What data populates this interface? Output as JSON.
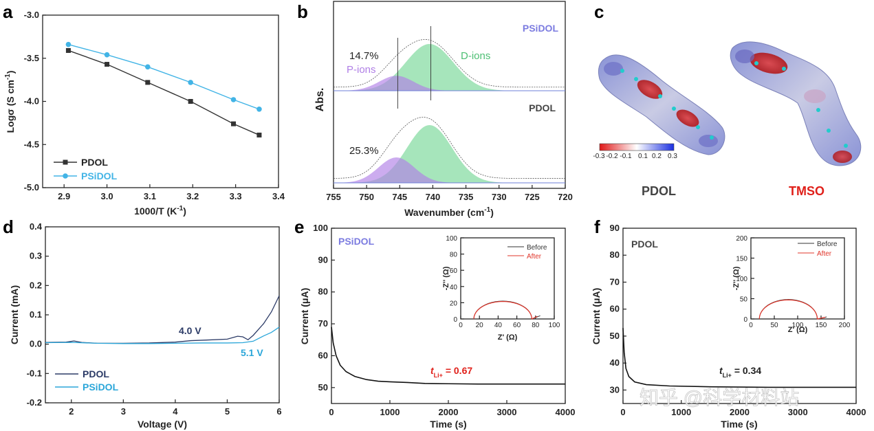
{
  "panels": {
    "a": {
      "letter": "a",
      "chart_data": {
        "type": "line",
        "xlabel": "1000/T (K",
        "xlabel_sup": "-1",
        "xlabel_end": ")",
        "ylabel": "Logσ (S cm",
        "ylabel_sup": "-1",
        "ylabel_end": ")",
        "xlim": [
          2.85,
          3.4
        ],
        "ylim": [
          -5.0,
          -3.0
        ],
        "xticks": [
          2.9,
          3.0,
          3.1,
          3.2,
          3.3,
          3.4
        ],
        "xtick_labels": [
          "2.9",
          "3.0",
          "3.1",
          "3.2",
          "3.3",
          "3.4"
        ],
        "yticks": [
          -3.0,
          -3.5,
          -4.0,
          -4.5,
          -5.0
        ],
        "ytick_labels": [
          "-3.0",
          "-3.5",
          "-4.0",
          "-4.5",
          "-5.0"
        ],
        "series": [
          {
            "name": "PDOL",
            "color": "#333333",
            "marker": "square",
            "x": [
              2.91,
              3.0,
              3.095,
              3.195,
              3.295,
              3.355
            ],
            "y": [
              -3.41,
              -3.57,
              -3.78,
              -4.0,
              -4.26,
              -4.39
            ]
          },
          {
            "name": "PSiDOL",
            "color": "#42b4e6",
            "marker": "circle",
            "x": [
              2.91,
              3.0,
              3.095,
              3.195,
              3.295,
              3.355
            ],
            "y": [
              -3.34,
              -3.46,
              -3.6,
              -3.78,
              -3.98,
              -4.09
            ]
          }
        ]
      }
    },
    "b": {
      "letter": "b",
      "chart_data": {
        "type": "area",
        "xlabel": "Wavenumber (cm",
        "xlabel_sup": "-1",
        "xlabel_end": ")",
        "ylabel": "Abs.",
        "xlim": [
          755,
          720
        ],
        "xticks": [
          755,
          750,
          745,
          740,
          735,
          730,
          725,
          720
        ],
        "xtick_labels": [
          "755",
          "750",
          "745",
          "740",
          "735",
          "730",
          "725",
          "720"
        ],
        "spectra": [
          {
            "name": "PSiDOL",
            "name_color": "#7b7be0",
            "p_ions_pct": "14.7%",
            "p_center": 745.5,
            "p_width": 2.6,
            "p_amp": 0.32,
            "d_center": 740.5,
            "d_width": 3.6,
            "d_amp": 1.0
          },
          {
            "name": "PDOL",
            "name_color": "#444444",
            "p_ions_pct": "25.3%",
            "p_center": 745.5,
            "p_width": 2.7,
            "p_amp": 0.44,
            "d_center": 740.5,
            "d_width": 3.4,
            "d_amp": 1.0
          }
        ],
        "annotations": {
          "p_ions": "P-ions",
          "d_ions": "D-ions"
        },
        "p_color": "#b07fe6",
        "d_color": "#5ccf83"
      }
    },
    "c": {
      "letter": "c",
      "molecule_labels": [
        "PDOL",
        "TMSO"
      ],
      "molecule_label_colors": [
        "#444444",
        "#e0201a"
      ],
      "colorbar_ticks": [
        "-0.3",
        "-0.2",
        "-0.1",
        "0.1",
        "0.2",
        "0.3"
      ]
    },
    "d": {
      "letter": "d",
      "chart_data": {
        "type": "line",
        "xlabel": "Voltage (V)",
        "ylabel": "Current (mA)",
        "xlim": [
          1.5,
          6
        ],
        "ylim": [
          -0.2,
          0.4
        ],
        "xticks": [
          2,
          3,
          4,
          5,
          6
        ],
        "xtick_labels": [
          "2",
          "3",
          "4",
          "5",
          "6"
        ],
        "yticks": [
          0.4,
          0.3,
          0.2,
          0.1,
          0.0,
          -0.1,
          -0.2
        ],
        "ytick_labels": [
          "0.4",
          "0.3",
          "0.2",
          "0.1",
          "0.0",
          "-0.1",
          "-0.2"
        ],
        "series": [
          {
            "name": "PDOL",
            "color": "#2b3a66",
            "x": [
              1.5,
              1.9,
              2.05,
              2.2,
              2.5,
              3.0,
              3.5,
              4.0,
              4.3,
              4.6,
              5.0,
              5.2,
              5.3,
              5.4,
              5.5,
              5.7,
              5.85,
              6.0
            ],
            "y": [
              0.006,
              0.007,
              0.011,
              0.006,
              0.003,
              0.003,
              0.004,
              0.007,
              0.012,
              0.014,
              0.017,
              0.027,
              0.025,
              0.015,
              0.03,
              0.07,
              0.11,
              0.165
            ]
          },
          {
            "name": "PSiDOL",
            "color": "#2aa6d9",
            "x": [
              1.5,
              2.0,
              2.5,
              3.0,
              3.5,
              4.0,
              4.5,
              5.0,
              5.3,
              5.5,
              5.7,
              5.85,
              6.0
            ],
            "y": [
              0.005,
              0.006,
              0.003,
              0.002,
              0.002,
              0.003,
              0.004,
              0.004,
              0.005,
              0.01,
              0.028,
              0.04,
              0.058
            ]
          }
        ],
        "annotations": [
          {
            "text": "4.0 V",
            "color": "#2b3a66"
          },
          {
            "text": "5.1 V",
            "color": "#2aa6d9"
          }
        ]
      }
    },
    "e": {
      "letter": "e",
      "label": "PSiDOL",
      "label_color": "#7b7be0",
      "t_prefix": "t",
      "t_sub": "Li+",
      "t_value": " = 0.67",
      "t_color": "#e0201a",
      "chart_data": {
        "type": "line",
        "xlabel": "Time (s)",
        "ylabel": "Current (μA)",
        "xlim": [
          0,
          4000
        ],
        "ylim": [
          45,
          100
        ],
        "xticks": [
          0,
          1000,
          2000,
          3000,
          4000
        ],
        "xtick_labels": [
          "0",
          "1000",
          "2000",
          "3000",
          "4000"
        ],
        "yticks": [
          50,
          60,
          70,
          80,
          90,
          100
        ],
        "ytick_labels": [
          "50",
          "60",
          "70",
          "80",
          "90",
          "100"
        ],
        "series": [
          {
            "name": "current",
            "color": "#111111",
            "x": [
              0,
              30,
              80,
              150,
              250,
              400,
              600,
              800,
              1000,
              1300,
              1600,
              2000,
              2500,
              3000,
              3500,
              4000
            ],
            "y": [
              69,
              64,
              60,
              57,
              55,
              53.5,
              52.5,
              52,
              51.8,
              51.6,
              51.3,
              51.2,
              51.1,
              51.1,
              51.1,
              51.1
            ]
          }
        ],
        "inset": {
          "xlabel": "Z' (Ω)",
          "ylabel": "-Z'' (Ω)",
          "xlim": [
            0,
            100
          ],
          "ylim": [
            0,
            100
          ],
          "xticks": [
            0,
            20,
            40,
            60,
            80,
            100
          ],
          "xtick_labels": [
            "0",
            "20",
            "40",
            "60",
            "80",
            "100"
          ],
          "yticks": [
            0,
            20,
            40,
            60,
            80,
            100
          ],
          "ytick_labels": [
            "0",
            "20",
            "40",
            "60",
            "80",
            "100"
          ],
          "legend": [
            "Before",
            "After"
          ],
          "arc": {
            "x0": 14,
            "x1": 76,
            "h": 22,
            "tail_x": 85,
            "tail_y": 4
          }
        }
      }
    },
    "f": {
      "letter": "f",
      "label": "PDOL",
      "label_color": "#444444",
      "t_prefix": "t",
      "t_sub": "Li+",
      "t_value": " = 0.34",
      "t_color": "#222222",
      "chart_data": {
        "type": "line",
        "xlabel": "Time (s)",
        "ylabel": "Current (μA)",
        "xlim": [
          0,
          4000
        ],
        "ylim": [
          25,
          90
        ],
        "xticks": [
          0,
          1000,
          2000,
          3000,
          4000
        ],
        "xtick_labels": [
          "0",
          "1000",
          "2000",
          "3000",
          "4000"
        ],
        "yticks": [
          30,
          40,
          50,
          60,
          70,
          80,
          90
        ],
        "ytick_labels": [
          "30",
          "40",
          "50",
          "60",
          "70",
          "80",
          "90"
        ],
        "series": [
          {
            "name": "current",
            "color": "#111111",
            "x": [
              0,
              20,
              50,
              100,
              200,
              400,
              800,
              1500,
              2500,
              3500,
              4000
            ],
            "y": [
              53,
              44,
              38,
              35,
              33,
              32,
              31.5,
              31.2,
              31,
              31,
              31
            ]
          }
        ],
        "inset": {
          "xlabel": "Z' (Ω)",
          "ylabel": "-Z'' (Ω)",
          "xlim": [
            0,
            200
          ],
          "ylim": [
            0,
            200
          ],
          "xticks": [
            0,
            50,
            100,
            150,
            200
          ],
          "xtick_labels": [
            "0",
            "50",
            "100",
            "150",
            "200"
          ],
          "yticks": [
            0,
            50,
            100,
            150,
            200
          ],
          "ytick_labels": [
            "0",
            "50",
            "100",
            "150",
            "200"
          ],
          "legend": [
            "Before",
            "After"
          ],
          "arc": {
            "x0": 18,
            "x1": 142,
            "h": 48,
            "tail_x": 162,
            "tail_y": 5
          }
        }
      }
    }
  },
  "watermark": "知乎 @科学材料站"
}
